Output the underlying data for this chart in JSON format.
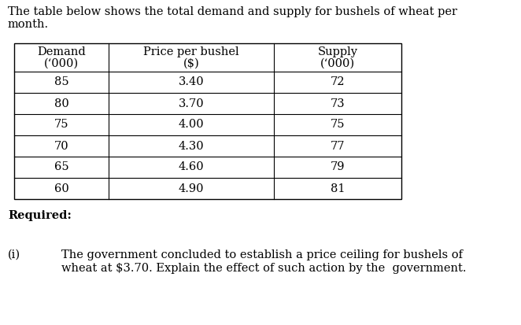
{
  "intro_text_line1": "The table below shows the total demand and supply for bushels of wheat per",
  "intro_text_line2": "month.",
  "col_headers_line1": [
    "Demand",
    "Price per bushel",
    "Supply"
  ],
  "col_headers_line2": [
    "(‘000)",
    "($)",
    "(‘000)"
  ],
  "table_data": [
    [
      "85",
      "3.40",
      "72"
    ],
    [
      "80",
      "3.70",
      "73"
    ],
    [
      "75",
      "4.00",
      "75"
    ],
    [
      "70",
      "4.30",
      "77"
    ],
    [
      "65",
      "4.60",
      "79"
    ],
    [
      "60",
      "4.90",
      "81"
    ]
  ],
  "required_label": "Required:",
  "question_number": "(i)",
  "question_text_line1": "The government concluded to establish a price ceiling for bushels of",
  "question_text_line2": "wheat at $3.70. Explain the effect of such action by the  government.",
  "bg_color": "#ffffff",
  "text_color": "#000000",
  "font_size": 10.5
}
